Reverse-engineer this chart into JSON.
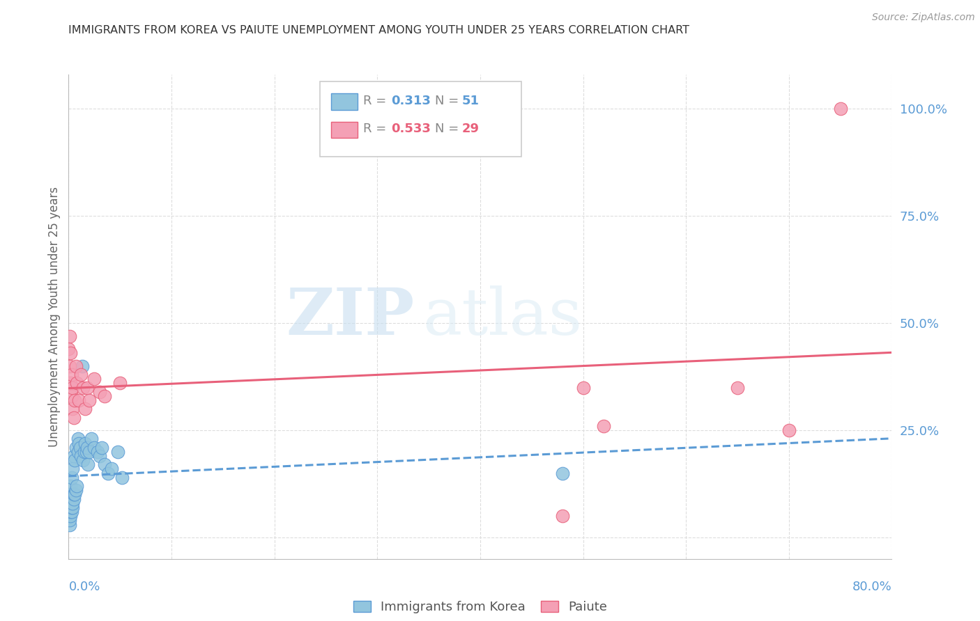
{
  "title": "IMMIGRANTS FROM KOREA VS PAIUTE UNEMPLOYMENT AMONG YOUTH UNDER 25 YEARS CORRELATION CHART",
  "source": "Source: ZipAtlas.com",
  "ylabel": "Unemployment Among Youth under 25 years",
  "xmin": 0.0,
  "xmax": 0.8,
  "ymin": -0.05,
  "ymax": 1.08,
  "legend_r1": "0.313",
  "legend_n1": "51",
  "legend_r2": "0.533",
  "legend_n2": "29",
  "blue_color": "#92C5DE",
  "pink_color": "#F4A0B5",
  "blue_line_color": "#5B9BD5",
  "pink_line_color": "#E8607A",
  "axis_label_color": "#5B9BD5",
  "grid_color": "#DDDDDD",
  "watermark_zip": "ZIP",
  "watermark_atlas": "atlas",
  "korea_x": [
    0.0,
    0.001,
    0.001,
    0.001,
    0.001,
    0.001,
    0.001,
    0.002,
    0.002,
    0.002,
    0.002,
    0.002,
    0.003,
    0.003,
    0.003,
    0.003,
    0.004,
    0.004,
    0.004,
    0.005,
    0.005,
    0.005,
    0.006,
    0.006,
    0.007,
    0.007,
    0.008,
    0.009,
    0.009,
    0.01,
    0.011,
    0.012,
    0.013,
    0.014,
    0.015,
    0.016,
    0.017,
    0.018,
    0.019,
    0.02,
    0.022,
    0.025,
    0.028,
    0.03,
    0.032,
    0.035,
    0.038,
    0.042,
    0.048,
    0.052,
    0.48
  ],
  "korea_y": [
    0.05,
    0.03,
    0.04,
    0.06,
    0.07,
    0.08,
    0.1,
    0.05,
    0.06,
    0.07,
    0.09,
    0.12,
    0.06,
    0.07,
    0.08,
    0.14,
    0.07,
    0.08,
    0.16,
    0.09,
    0.1,
    0.19,
    0.1,
    0.18,
    0.11,
    0.21,
    0.12,
    0.2,
    0.23,
    0.22,
    0.21,
    0.19,
    0.4,
    0.18,
    0.2,
    0.22,
    0.2,
    0.21,
    0.17,
    0.2,
    0.23,
    0.21,
    0.2,
    0.19,
    0.21,
    0.17,
    0.15,
    0.16,
    0.2,
    0.14,
    0.15
  ],
  "paiute_x": [
    0.0,
    0.001,
    0.001,
    0.002,
    0.002,
    0.003,
    0.003,
    0.004,
    0.004,
    0.005,
    0.006,
    0.007,
    0.008,
    0.01,
    0.012,
    0.014,
    0.016,
    0.018,
    0.02,
    0.025,
    0.03,
    0.035,
    0.05,
    0.48,
    0.5,
    0.52,
    0.65,
    0.7,
    0.75
  ],
  "paiute_y": [
    0.44,
    0.4,
    0.47,
    0.36,
    0.43,
    0.33,
    0.38,
    0.3,
    0.35,
    0.28,
    0.32,
    0.4,
    0.36,
    0.32,
    0.38,
    0.35,
    0.3,
    0.35,
    0.32,
    0.37,
    0.34,
    0.33,
    0.36,
    0.05,
    0.35,
    0.26,
    0.35,
    0.25,
    1.0
  ],
  "korea_trend": [
    0.18,
    0.32
  ],
  "paiute_trend_start": 0.2,
  "paiute_trend_end": 0.62
}
